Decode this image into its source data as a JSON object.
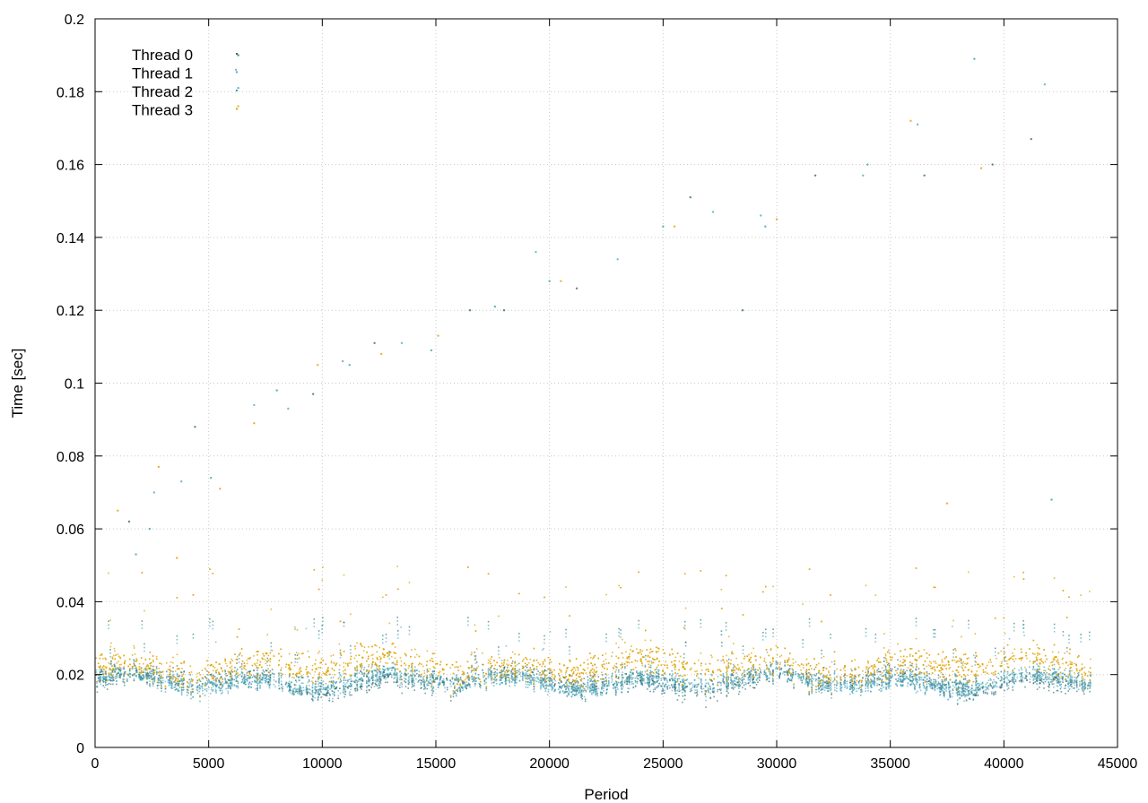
{
  "chart_data": {
    "type": "scatter",
    "title": "",
    "xlabel": "Period",
    "ylabel": "Time [sec]",
    "xlim": [
      0,
      45000
    ],
    "ylim": [
      0,
      0.2
    ],
    "xticks": [
      0,
      5000,
      10000,
      15000,
      20000,
      25000,
      30000,
      35000,
      40000,
      45000
    ],
    "yticks": [
      0,
      0.02,
      0.04,
      0.06,
      0.08,
      0.1,
      0.12,
      0.14,
      0.16,
      0.18,
      0.2
    ],
    "xtick_labels": [
      "0",
      "5000",
      "10000",
      "15000",
      "20000",
      "25000",
      "30000",
      "35000",
      "40000",
      "45000"
    ],
    "ytick_labels": [
      "0",
      "0.02",
      "0.04",
      "0.06",
      "0.08",
      "0.1",
      "0.12",
      "0.14",
      "0.16",
      "0.18",
      "0.2"
    ],
    "grid": true,
    "legend_position": "top-left",
    "x_max_observed": 43800,
    "series": [
      {
        "name": "Thread 0",
        "color": "#2e6b6f",
        "typical_range": [
          0.013,
          0.024
        ],
        "outliers": [
          [
            6300,
            0.19
          ],
          [
            4400,
            0.088
          ],
          [
            12300,
            0.111
          ],
          [
            16500,
            0.12
          ],
          [
            21200,
            0.126
          ],
          [
            26200,
            0.151
          ],
          [
            31700,
            0.157
          ],
          [
            36500,
            0.157
          ],
          [
            39500,
            0.16
          ],
          [
            41200,
            0.167
          ],
          [
            1500,
            0.062
          ],
          [
            18000,
            0.12
          ],
          [
            9600,
            0.097
          ],
          [
            28500,
            0.12
          ]
        ]
      },
      {
        "name": "Thread 1",
        "color": "#58a8c8",
        "typical_range": [
          0.014,
          0.022
        ],
        "outliers": [
          [
            6200,
            0.186
          ],
          [
            2600,
            0.07
          ],
          [
            7000,
            0.094
          ],
          [
            10900,
            0.106
          ],
          [
            13500,
            0.111
          ],
          [
            19400,
            0.136
          ],
          [
            23000,
            0.134
          ],
          [
            27200,
            0.147
          ],
          [
            29300,
            0.146
          ],
          [
            33800,
            0.157
          ],
          [
            36200,
            0.171
          ],
          [
            41800,
            0.182
          ],
          [
            3800,
            0.073
          ],
          [
            8500,
            0.093
          ]
        ]
      },
      {
        "name": "Thread 2",
        "color": "#3b9faf",
        "typical_range": [
          0.014,
          0.023
        ],
        "outliers": [
          [
            6300,
            0.181
          ],
          [
            2400,
            0.06
          ],
          [
            5100,
            0.074
          ],
          [
            8000,
            0.098
          ],
          [
            11200,
            0.105
          ],
          [
            14800,
            0.109
          ],
          [
            20000,
            0.128
          ],
          [
            25000,
            0.143
          ],
          [
            29500,
            0.143
          ],
          [
            34000,
            0.16
          ],
          [
            38700,
            0.189
          ],
          [
            42100,
            0.068
          ],
          [
            1800,
            0.053
          ],
          [
            17600,
            0.121
          ]
        ]
      },
      {
        "name": "Thread 3",
        "color": "#e0a200",
        "typical_range": [
          0.015,
          0.03
        ],
        "outliers": [
          [
            6300,
            0.176
          ],
          [
            1000,
            0.065
          ],
          [
            2800,
            0.077
          ],
          [
            5500,
            0.071
          ],
          [
            7000,
            0.089
          ],
          [
            9800,
            0.105
          ],
          [
            12600,
            0.108
          ],
          [
            15100,
            0.113
          ],
          [
            20500,
            0.128
          ],
          [
            25500,
            0.143
          ],
          [
            30000,
            0.145
          ],
          [
            35900,
            0.172
          ],
          [
            39000,
            0.159
          ],
          [
            3600,
            0.052
          ],
          [
            37500,
            0.067
          ]
        ]
      }
    ]
  }
}
